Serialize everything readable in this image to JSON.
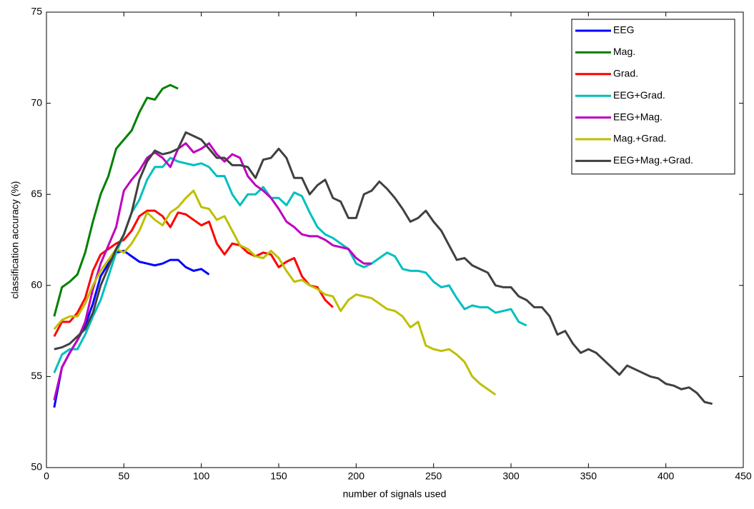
{
  "chart_data": {
    "type": "line",
    "xlabel": "number of signals used",
    "ylabel": "classification accuracy (%)",
    "xlim": [
      0,
      450
    ],
    "ylim": [
      50,
      75
    ],
    "xticks": [
      0,
      50,
      100,
      150,
      200,
      250,
      300,
      350,
      400,
      450
    ],
    "yticks": [
      50,
      55,
      60,
      65,
      70,
      75
    ],
    "legend": "upper right",
    "series": [
      {
        "name": "EEG",
        "color": "#0000ff",
        "x": [
          5,
          10,
          15,
          20,
          25,
          30,
          35,
          40,
          45,
          50,
          55,
          60,
          65,
          70,
          75,
          80,
          85,
          90,
          95,
          100,
          105
        ],
        "values": [
          53.3,
          55.5,
          56.3,
          57,
          57.8,
          59,
          60.5,
          61.2,
          61.8,
          61.9,
          61.6,
          61.3,
          61.2,
          61.1,
          61.2,
          61.4,
          61.4,
          61,
          60.8,
          60.9,
          60.6
        ]
      },
      {
        "name": "Mag.",
        "color": "#008000",
        "x": [
          5,
          10,
          15,
          20,
          25,
          30,
          35,
          40,
          45,
          50,
          55,
          60,
          65,
          70,
          75,
          80,
          85
        ],
        "values": [
          58.3,
          59.9,
          60.2,
          60.6,
          61.8,
          63.5,
          65,
          66,
          67.5,
          68,
          68.5,
          69.5,
          70.3,
          70.2,
          70.8,
          71,
          70.8
        ]
      },
      {
        "name": "Grad.",
        "color": "#ff0000",
        "x": [
          5,
          10,
          15,
          20,
          25,
          30,
          35,
          40,
          45,
          50,
          55,
          60,
          65,
          70,
          75,
          80,
          85,
          90,
          95,
          100,
          105,
          110,
          115,
          120,
          125,
          130,
          135,
          140,
          145,
          150,
          155,
          160,
          165,
          170,
          175,
          180,
          185
        ],
        "values": [
          57.2,
          58,
          58,
          58.5,
          59.3,
          60.8,
          61.7,
          62,
          62.3,
          62.5,
          63,
          63.8,
          64.1,
          64.1,
          63.8,
          63.2,
          64,
          63.9,
          63.6,
          63.3,
          63.5,
          62.3,
          61.7,
          62.3,
          62.2,
          61.8,
          61.6,
          61.8,
          61.7,
          61,
          61.3,
          61.5,
          60.5,
          60,
          59.9,
          59.2,
          58.8
        ]
      },
      {
        "name": "EEG+Grad.",
        "color": "#00bfbf",
        "x": [
          5,
          10,
          15,
          20,
          25,
          30,
          35,
          40,
          45,
          50,
          55,
          60,
          65,
          70,
          75,
          80,
          85,
          90,
          95,
          100,
          105,
          110,
          115,
          120,
          125,
          130,
          135,
          140,
          145,
          150,
          155,
          160,
          165,
          170,
          175,
          180,
          185,
          190,
          195,
          200,
          205,
          210,
          215,
          220,
          225,
          230,
          235,
          240,
          245,
          250,
          255,
          260,
          265,
          270,
          275,
          280,
          285,
          290,
          295,
          300,
          305,
          310
        ],
        "values": [
          55.2,
          56.2,
          56.5,
          56.5,
          57.3,
          58.3,
          59.2,
          60.5,
          61.8,
          62.8,
          64,
          64.7,
          65.8,
          66.5,
          66.5,
          67,
          66.8,
          66.7,
          66.6,
          66.7,
          66.5,
          66,
          66,
          65,
          64.4,
          65,
          65,
          65.4,
          64.8,
          64.8,
          64.4,
          65.1,
          64.9,
          64,
          63.2,
          62.8,
          62.6,
          62.3,
          62,
          61.2,
          61,
          61.2,
          61.5,
          61.8,
          61.6,
          60.9,
          60.8,
          60.8,
          60.7,
          60.2,
          59.9,
          60,
          59.3,
          58.7,
          58.9,
          58.8,
          58.8,
          58.5,
          58.6,
          58.7,
          58,
          57.8
        ]
      },
      {
        "name": "EEG+Mag.",
        "color": "#bf00bf",
        "x": [
          5,
          10,
          15,
          20,
          25,
          30,
          35,
          40,
          45,
          50,
          55,
          60,
          65,
          70,
          75,
          80,
          85,
          90,
          95,
          100,
          105,
          110,
          115,
          120,
          125,
          130,
          135,
          140,
          145,
          150,
          155,
          160,
          165,
          170,
          175,
          180,
          185,
          190,
          195,
          200,
          205,
          210
        ],
        "values": [
          53.7,
          55.5,
          56.3,
          57,
          58,
          59.8,
          61.2,
          62.2,
          63.2,
          65.2,
          65.8,
          66.3,
          67,
          67.3,
          67,
          66.5,
          67.5,
          67.8,
          67.3,
          67.5,
          67.8,
          67.2,
          66.8,
          67.2,
          67,
          66,
          65.5,
          65.2,
          64.8,
          64.2,
          63.5,
          63.2,
          62.8,
          62.7,
          62.7,
          62.5,
          62.2,
          62.1,
          62,
          61.5,
          61.2,
          61.2
        ]
      },
      {
        "name": "Mag.+Grad.",
        "color": "#bfbf00",
        "x": [
          5,
          10,
          15,
          20,
          25,
          30,
          35,
          40,
          45,
          50,
          55,
          60,
          65,
          70,
          75,
          80,
          85,
          90,
          95,
          100,
          105,
          110,
          115,
          120,
          125,
          130,
          135,
          140,
          145,
          150,
          155,
          160,
          165,
          170,
          175,
          180,
          185,
          190,
          195,
          200,
          205,
          210,
          215,
          220,
          225,
          230,
          235,
          240,
          245,
          250,
          255,
          260,
          265,
          270,
          275,
          280,
          285,
          290
        ],
        "values": [
          57.6,
          58.1,
          58.3,
          58.3,
          59,
          60,
          60.8,
          61.4,
          62,
          61.8,
          62.3,
          63,
          64,
          63.6,
          63.3,
          64,
          64.3,
          64.8,
          65.2,
          64.3,
          64.2,
          63.6,
          63.8,
          63,
          62.2,
          62,
          61.6,
          61.5,
          61.9,
          61.5,
          60.8,
          60.2,
          60.3,
          60,
          59.8,
          59.5,
          59.4,
          58.6,
          59.2,
          59.5,
          59.4,
          59.3,
          59,
          58.7,
          58.6,
          58.3,
          57.7,
          58,
          56.7,
          56.5,
          56.4,
          56.5,
          56.2,
          55.8,
          55,
          54.6,
          54.3,
          54
        ]
      },
      {
        "name": "EEG+Mag.+Grad.",
        "color": "#404040",
        "x": [
          5,
          10,
          15,
          20,
          25,
          30,
          35,
          40,
          45,
          50,
          55,
          60,
          65,
          70,
          75,
          80,
          85,
          90,
          95,
          100,
          105,
          110,
          115,
          120,
          125,
          130,
          135,
          140,
          145,
          150,
          155,
          160,
          165,
          170,
          175,
          180,
          185,
          190,
          195,
          200,
          205,
          210,
          215,
          220,
          225,
          230,
          235,
          240,
          245,
          250,
          255,
          260,
          265,
          270,
          275,
          280,
          285,
          290,
          295,
          300,
          305,
          310,
          315,
          320,
          325,
          330,
          335,
          340,
          345,
          350,
          355,
          360,
          365,
          370,
          375,
          380,
          385,
          390,
          395,
          400,
          405,
          410,
          415,
          420,
          425,
          430
        ],
        "values": [
          56.5,
          56.6,
          56.8,
          57.2,
          57.6,
          58.5,
          60,
          61,
          62,
          62.8,
          64,
          65.8,
          66.8,
          67.4,
          67.2,
          67.3,
          67.5,
          68.4,
          68.2,
          68,
          67.5,
          67,
          67,
          66.6,
          66.6,
          66.5,
          65.9,
          66.9,
          67,
          67.5,
          67,
          65.9,
          65.9,
          65,
          65.5,
          65.8,
          64.8,
          64.6,
          63.7,
          63.7,
          65,
          65.2,
          65.7,
          65.3,
          64.8,
          64.2,
          63.5,
          63.7,
          64.1,
          63.5,
          63,
          62.2,
          61.4,
          61.5,
          61.1,
          60.9,
          60.7,
          60,
          59.9,
          59.9,
          59.4,
          59.2,
          58.8,
          58.8,
          58.3,
          57.3,
          57.5,
          56.8,
          56.3,
          56.5,
          56.3,
          55.9,
          55.5,
          55.1,
          55.6,
          55.4,
          55.2,
          55,
          54.9,
          54.6,
          54.5,
          54.3,
          54.4,
          54.1,
          53.6,
          53.5
        ]
      }
    ]
  }
}
